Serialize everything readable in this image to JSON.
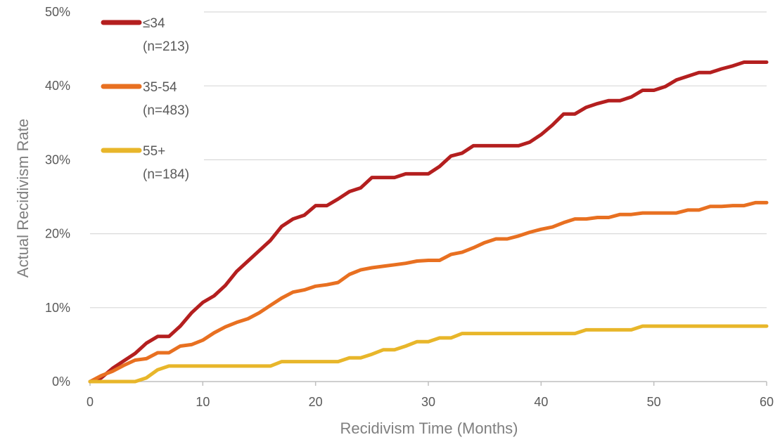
{
  "chart_data": {
    "type": "line",
    "title": "",
    "xlabel": "Recidivism Time (Months)",
    "ylabel": "Actual Recidivism Rate",
    "xlim": [
      0,
      60
    ],
    "ylim": [
      0,
      50
    ],
    "x_ticks": [
      0,
      10,
      20,
      30,
      40,
      50,
      60
    ],
    "y_ticks": [
      0,
      10,
      20,
      30,
      40,
      50
    ],
    "y_tick_suffix": "%",
    "grid": "horizontal",
    "legend_position": "top-left",
    "series": [
      {
        "name": "≤34",
        "sub": "(n=213)",
        "color": "#b41f1f",
        "x": [
          0,
          1,
          2,
          3,
          4,
          5,
          6,
          7,
          8,
          9,
          10,
          11,
          12,
          13,
          14,
          15,
          16,
          17,
          18,
          19,
          20,
          21,
          22,
          23,
          24,
          25,
          26,
          27,
          28,
          29,
          30,
          31,
          32,
          33,
          34,
          35,
          36,
          37,
          38,
          39,
          40,
          41,
          42,
          43,
          44,
          45,
          46,
          47,
          48,
          49,
          50,
          51,
          52,
          53,
          54,
          55,
          56,
          57,
          58,
          59,
          60
        ],
        "values": [
          0,
          0.5,
          1.8,
          2.8,
          3.8,
          5.2,
          6.1,
          6.1,
          7.5,
          9.3,
          10.7,
          11.6,
          13.0,
          14.9,
          16.3,
          17.7,
          19.1,
          21.0,
          22.0,
          22.5,
          23.8,
          23.8,
          24.7,
          25.7,
          26.2,
          27.6,
          27.6,
          27.6,
          28.1,
          28.1,
          28.1,
          29.1,
          30.5,
          30.9,
          31.9,
          31.9,
          31.9,
          31.9,
          31.9,
          32.4,
          33.4,
          34.7,
          36.2,
          36.2,
          37.1,
          37.6,
          38.0,
          38.0,
          38.5,
          39.4,
          39.4,
          39.9,
          40.8,
          41.3,
          41.8,
          41.8,
          42.3,
          42.7,
          43.2,
          43.2,
          43.2
        ]
      },
      {
        "name": "35-54",
        "sub": "(n=483)",
        "color": "#e87021",
        "x": [
          0,
          1,
          2,
          3,
          4,
          5,
          6,
          7,
          8,
          9,
          10,
          11,
          12,
          13,
          14,
          15,
          16,
          17,
          18,
          19,
          20,
          21,
          22,
          23,
          24,
          25,
          26,
          27,
          28,
          29,
          30,
          31,
          32,
          33,
          34,
          35,
          36,
          37,
          38,
          39,
          40,
          41,
          42,
          43,
          44,
          45,
          46,
          47,
          48,
          49,
          50,
          51,
          52,
          53,
          54,
          55,
          56,
          57,
          58,
          59,
          60
        ],
        "values": [
          0,
          0.8,
          1.4,
          2.2,
          2.9,
          3.1,
          3.9,
          3.9,
          4.8,
          5.0,
          5.6,
          6.6,
          7.4,
          8.0,
          8.5,
          9.3,
          10.3,
          11.3,
          12.1,
          12.4,
          12.9,
          13.1,
          13.4,
          14.5,
          15.1,
          15.4,
          15.6,
          15.8,
          16.0,
          16.3,
          16.4,
          16.4,
          17.2,
          17.5,
          18.1,
          18.8,
          19.3,
          19.3,
          19.7,
          20.2,
          20.6,
          20.9,
          21.5,
          22.0,
          22.0,
          22.2,
          22.2,
          22.6,
          22.6,
          22.8,
          22.8,
          22.8,
          22.8,
          23.2,
          23.2,
          23.7,
          23.7,
          23.8,
          23.8,
          24.2,
          24.2
        ]
      },
      {
        "name": "55+",
        "sub": "(n=184)",
        "color": "#e8b62a",
        "x": [
          0,
          1,
          2,
          3,
          4,
          5,
          6,
          7,
          8,
          9,
          10,
          11,
          12,
          13,
          14,
          15,
          16,
          17,
          18,
          19,
          20,
          21,
          22,
          23,
          24,
          25,
          26,
          27,
          28,
          29,
          30,
          31,
          32,
          33,
          34,
          35,
          36,
          37,
          38,
          39,
          40,
          41,
          42,
          43,
          44,
          45,
          46,
          47,
          48,
          49,
          50,
          51,
          52,
          53,
          54,
          55,
          56,
          57,
          58,
          59,
          60
        ],
        "values": [
          0,
          0,
          0,
          0,
          0,
          0.5,
          1.6,
          2.1,
          2.1,
          2.1,
          2.1,
          2.1,
          2.1,
          2.1,
          2.1,
          2.1,
          2.1,
          2.7,
          2.7,
          2.7,
          2.7,
          2.7,
          2.7,
          3.2,
          3.2,
          3.7,
          4.3,
          4.3,
          4.8,
          5.4,
          5.4,
          5.9,
          5.9,
          6.5,
          6.5,
          6.5,
          6.5,
          6.5,
          6.5,
          6.5,
          6.5,
          6.5,
          6.5,
          6.5,
          7.0,
          7.0,
          7.0,
          7.0,
          7.0,
          7.5,
          7.5,
          7.5,
          7.5,
          7.5,
          7.5,
          7.5,
          7.5,
          7.5,
          7.5,
          7.5,
          7.5
        ]
      }
    ]
  }
}
